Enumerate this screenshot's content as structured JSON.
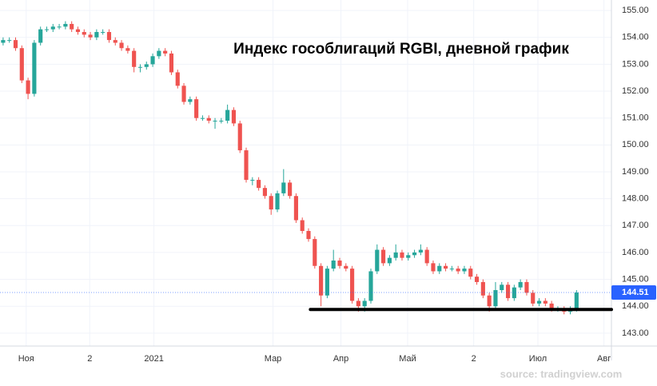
{
  "chart_data": {
    "type": "candlestick",
    "title": "Индекс гособлигаций RGBI, дневной график",
    "source": "source: tradingview.com",
    "up_color": "#26a69a",
    "down_color": "#ef5350",
    "open": [
      153.8,
      153.9,
      153.9,
      153.6,
      152.4,
      151.9,
      153.8,
      154.3,
      154.3,
      154.4,
      154.4,
      154.5,
      154.3,
      154.2,
      154.1,
      154.0,
      154.2,
      154.2,
      153.9,
      153.8,
      153.6,
      153.5,
      152.9,
      152.9,
      153.0,
      153.3,
      153.5,
      153.4,
      152.7,
      152.2,
      151.6,
      151.7,
      151.0,
      151.0,
      150.9,
      150.9,
      150.9,
      151.3,
      150.8,
      149.8,
      148.7,
      148.7,
      148.4,
      148.1,
      147.6,
      148.2,
      148.6,
      148.1,
      147.2,
      146.8,
      146.5,
      145.5,
      144.4,
      145.4,
      145.7,
      145.5,
      145.4,
      144.2,
      144.0,
      144.2,
      145.3,
      146.1,
      145.6,
      145.8,
      146.0,
      145.8,
      145.9,
      146.0,
      146.1,
      145.6,
      145.3,
      145.5,
      145.4,
      145.4,
      145.3,
      145.4,
      145.1,
      144.9,
      144.4,
      144.0,
      144.6,
      144.8,
      144.3,
      144.7,
      144.9,
      144.5,
      144.1,
      144.2,
      144.1,
      143.9,
      143.9,
      143.8,
      143.9
    ],
    "high": [
      154.0,
      154.0,
      154.0,
      153.7,
      152.5,
      153.9,
      154.4,
      154.4,
      154.5,
      154.5,
      154.6,
      154.6,
      154.4,
      154.3,
      154.2,
      154.3,
      154.3,
      154.3,
      154.0,
      153.9,
      153.7,
      153.6,
      153.0,
      153.1,
      153.4,
      153.6,
      153.6,
      153.5,
      152.8,
      152.3,
      151.8,
      151.8,
      151.1,
      151.1,
      151.0,
      151.0,
      151.5,
      151.4,
      150.9,
      149.9,
      148.8,
      148.8,
      148.5,
      148.2,
      148.3,
      149.1,
      148.7,
      148.2,
      147.3,
      146.9,
      146.6,
      145.6,
      145.5,
      146.1,
      145.8,
      145.6,
      145.5,
      144.3,
      144.3,
      145.4,
      146.3,
      146.2,
      145.9,
      146.3,
      146.1,
      146.0,
      146.1,
      146.3,
      146.2,
      145.7,
      145.6,
      145.6,
      145.5,
      145.5,
      145.5,
      145.5,
      145.2,
      145.0,
      144.5,
      144.9,
      144.9,
      144.9,
      144.8,
      145.0,
      145.0,
      144.6,
      144.3,
      144.3,
      144.2,
      144.0,
      144.0,
      144.0,
      144.6
    ],
    "low": [
      153.7,
      153.8,
      153.5,
      152.3,
      151.7,
      151.8,
      153.7,
      154.2,
      154.2,
      154.3,
      154.3,
      154.2,
      154.1,
      154.0,
      153.9,
      153.9,
      154.1,
      153.8,
      153.7,
      153.5,
      153.4,
      152.7,
      152.7,
      152.8,
      152.9,
      153.2,
      153.3,
      152.6,
      152.1,
      151.5,
      151.5,
      150.9,
      150.9,
      150.8,
      150.6,
      150.8,
      150.8,
      150.7,
      149.7,
      148.6,
      148.5,
      148.3,
      148.0,
      147.4,
      147.5,
      148.1,
      148.0,
      147.1,
      146.7,
      146.4,
      145.4,
      144.0,
      144.3,
      145.3,
      145.4,
      145.3,
      144.1,
      143.8,
      143.8,
      144.1,
      145.2,
      145.5,
      145.5,
      145.7,
      145.7,
      145.7,
      145.8,
      145.9,
      145.5,
      145.2,
      145.2,
      145.3,
      145.3,
      145.2,
      145.2,
      145.0,
      144.8,
      144.3,
      143.8,
      143.9,
      144.5,
      144.2,
      144.2,
      144.6,
      144.4,
      144.0,
      144.0,
      144.0,
      143.8,
      143.8,
      143.7,
      143.7,
      143.8
    ],
    "close": [
      153.9,
      153.9,
      153.6,
      152.4,
      151.9,
      153.8,
      154.3,
      154.3,
      154.4,
      154.4,
      154.5,
      154.3,
      154.2,
      154.1,
      154.0,
      154.2,
      154.2,
      153.9,
      153.8,
      153.6,
      153.5,
      152.9,
      152.9,
      153.0,
      153.3,
      153.5,
      153.4,
      152.7,
      152.2,
      151.6,
      151.7,
      151.0,
      151.0,
      150.9,
      150.9,
      150.9,
      151.3,
      150.8,
      149.8,
      148.7,
      148.7,
      148.4,
      148.1,
      147.6,
      148.2,
      148.6,
      148.1,
      147.2,
      146.8,
      146.5,
      145.5,
      144.4,
      145.4,
      145.7,
      145.5,
      145.4,
      144.2,
      144.0,
      144.2,
      145.3,
      146.1,
      145.6,
      145.8,
      146.0,
      145.8,
      145.9,
      146.0,
      146.1,
      145.6,
      145.3,
      145.5,
      145.4,
      145.4,
      145.3,
      145.4,
      145.1,
      144.9,
      144.4,
      144.0,
      144.6,
      144.8,
      144.3,
      144.7,
      144.9,
      144.5,
      144.1,
      144.2,
      144.1,
      143.9,
      143.9,
      143.8,
      143.9,
      144.51
    ],
    "last_price": 144.51,
    "last_price_color": "#2962ff",
    "support_line": {
      "value": 143.88,
      "x": [
        49.3,
        97.6
      ],
      "color": "#000000"
    },
    "xlim": [
      -0.5,
      97.6
    ],
    "xticks": [
      {
        "value": 3.7,
        "label": "Ноя"
      },
      {
        "value": 13.9,
        "label": "2"
      },
      {
        "value": 24.2,
        "label": "2021"
      },
      {
        "value": 43.3,
        "label": "Мар"
      },
      {
        "value": 54.2,
        "label": "Апр"
      },
      {
        "value": 64.9,
        "label": "Май"
      },
      {
        "value": 75.5,
        "label": "2"
      },
      {
        "value": 85.8,
        "label": "Июл"
      },
      {
        "value": 96.4,
        "label": "Авг"
      }
    ],
    "ylim": [
      142.52,
      155.39
    ],
    "yticks": [
      {
        "value": 143,
        "label": "143.00"
      },
      {
        "value": 144,
        "label": "144.00"
      },
      {
        "value": 145,
        "label": "145.00"
      },
      {
        "value": 146,
        "label": "146.00"
      },
      {
        "value": 147,
        "label": "147.00"
      },
      {
        "value": 148,
        "label": "148.00"
      },
      {
        "value": 149,
        "label": "149.00"
      },
      {
        "value": 150,
        "label": "150.00"
      },
      {
        "value": 151,
        "label": "151.00"
      },
      {
        "value": 152,
        "label": "152.00"
      },
      {
        "value": 153,
        "label": "153.00"
      },
      {
        "value": 154,
        "label": "154.00"
      },
      {
        "value": 155,
        "label": "155.00"
      }
    ],
    "grid": true
  }
}
